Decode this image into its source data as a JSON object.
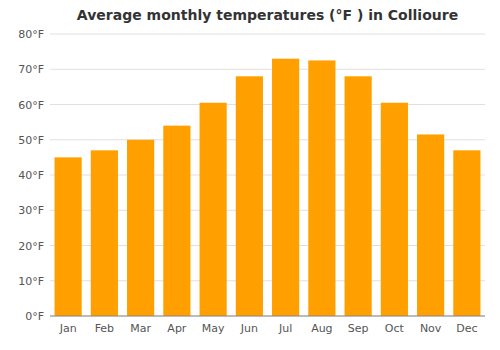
{
  "chart_data": {
    "type": "bar",
    "title": "Average monthly temperatures (°F ) in Collioure",
    "categories": [
      "Jan",
      "Feb",
      "Mar",
      "Apr",
      "May",
      "Jun",
      "Jul",
      "Aug",
      "Sep",
      "Oct",
      "Nov",
      "Dec"
    ],
    "values": [
      45,
      47,
      50,
      54,
      60.5,
      68,
      73,
      72.5,
      68,
      60.5,
      51.5,
      47
    ],
    "color": "#FFA000",
    "ylim": [
      0,
      80
    ],
    "yticks": [
      {
        "value": 0,
        "label": "0°F"
      },
      {
        "value": 10,
        "label": "10°F"
      },
      {
        "value": 20,
        "label": "20°F"
      },
      {
        "value": 30,
        "label": "30°F"
      },
      {
        "value": 40,
        "label": "40°F"
      },
      {
        "value": 50,
        "label": "50°F"
      },
      {
        "value": 60,
        "label": "60°F"
      },
      {
        "value": 70,
        "label": "70°F"
      },
      {
        "value": 80,
        "label": "80°F"
      }
    ],
    "grid": true
  }
}
